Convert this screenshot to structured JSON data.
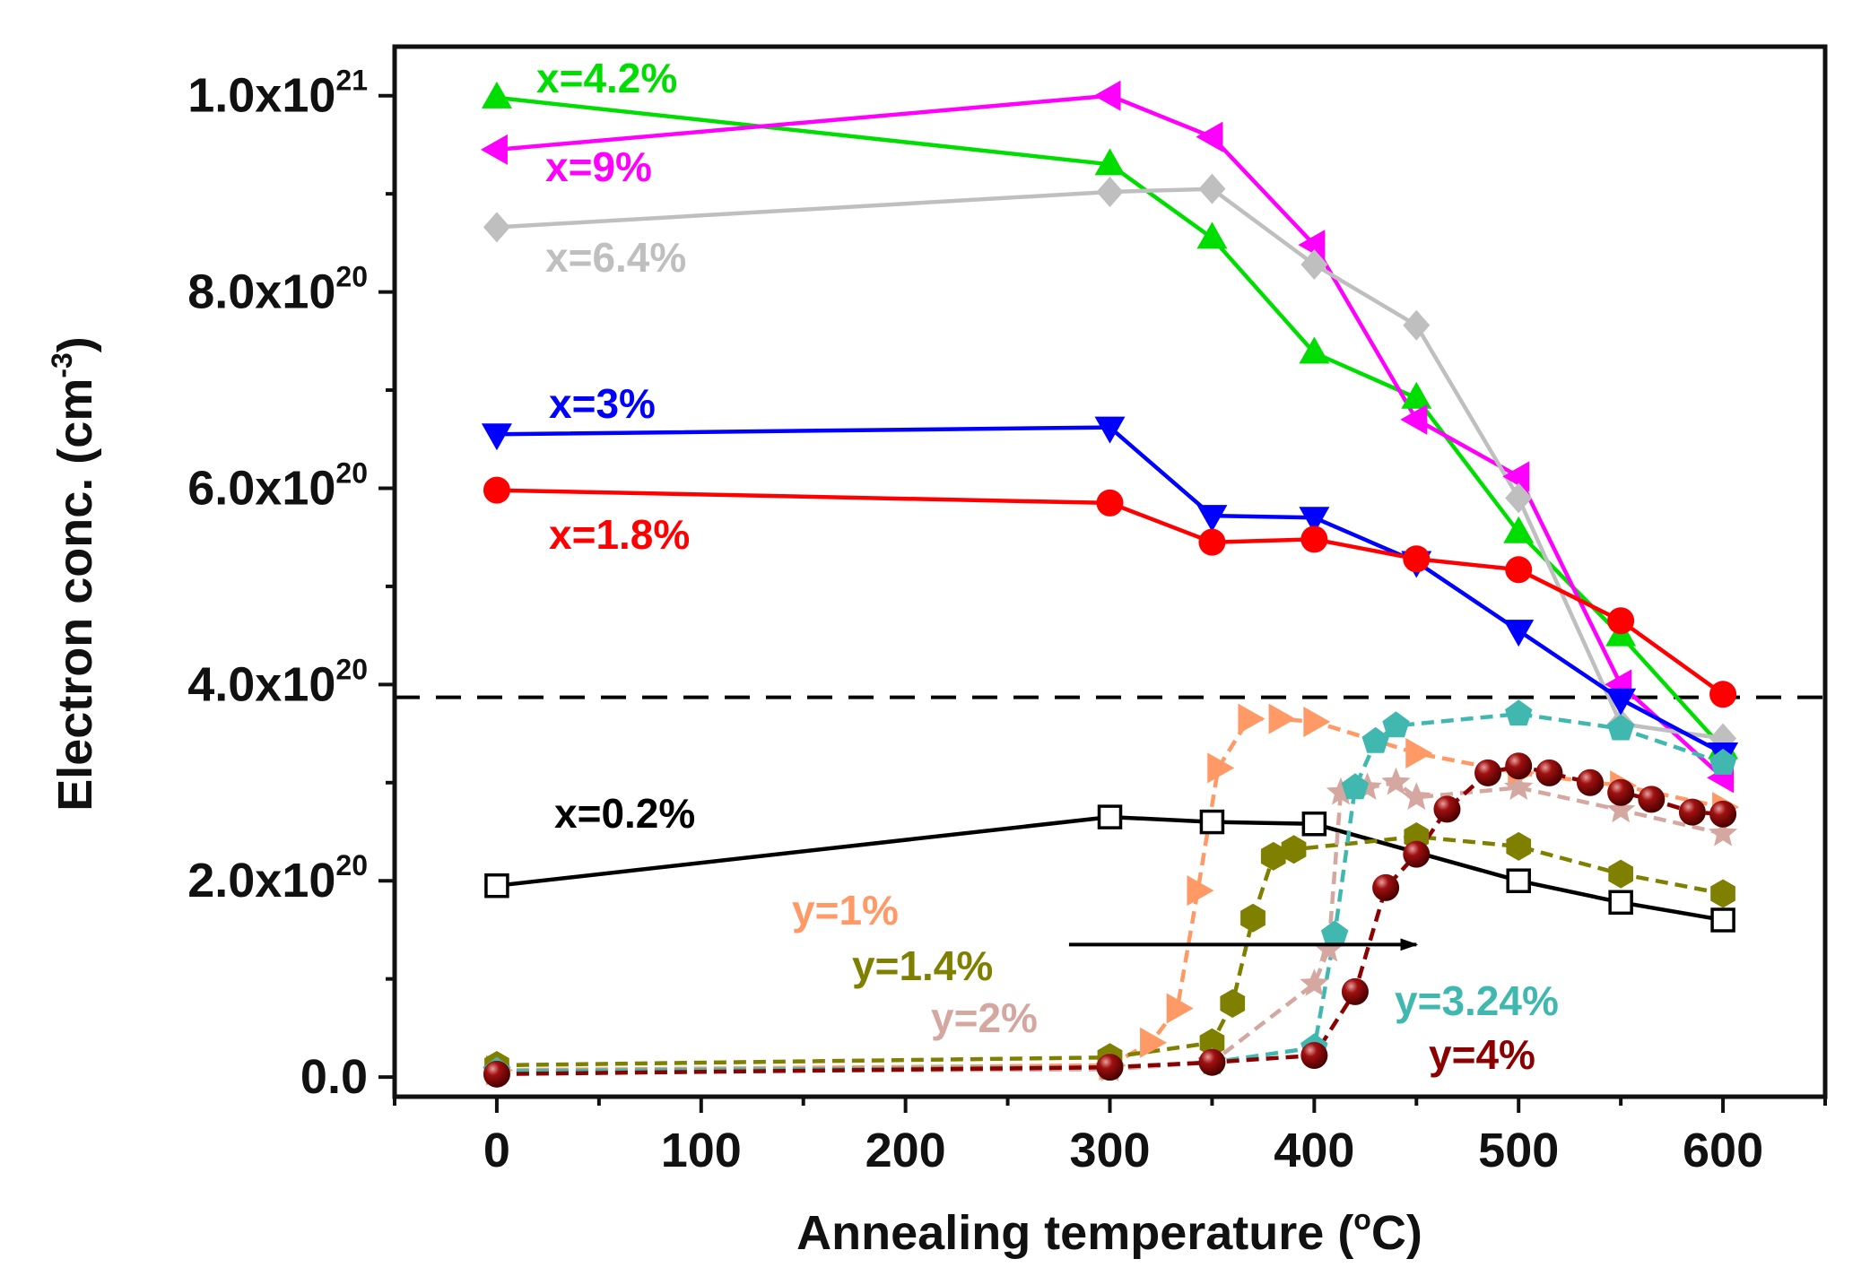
{
  "chart_data": {
    "type": "line",
    "xlabel": "Annealing temperature",
    "xlabel_unit_pre": "(",
    "xlabel_unit_sup": "o",
    "xlabel_unit_post": "C)",
    "ylabel": "Electron conc.",
    "ylabel_unit_pre": "(cm",
    "ylabel_unit_sup": "-3",
    "ylabel_unit_post": ")",
    "xlim": [
      -50,
      650
    ],
    "ylim": [
      -2e+19,
      1.05e+21
    ],
    "xticks": [
      {
        "value": 0,
        "label": "0"
      },
      {
        "value": 100,
        "label": "100"
      },
      {
        "value": 200,
        "label": "200"
      },
      {
        "value": 300,
        "label": "300"
      },
      {
        "value": 400,
        "label": "400"
      },
      {
        "value": 500,
        "label": "500"
      },
      {
        "value": 600,
        "label": "600"
      }
    ],
    "yticks": [
      {
        "value": 0,
        "base": "0.0",
        "exp": ""
      },
      {
        "value": 2e+20,
        "base": "2.0x10",
        "exp": "20"
      },
      {
        "value": 4e+20,
        "base": "4.0x10",
        "exp": "20"
      },
      {
        "value": 6e+20,
        "base": "6.0x10",
        "exp": "20"
      },
      {
        "value": 8e+20,
        "base": "8.0x10",
        "exp": "20"
      },
      {
        "value": 1e+21,
        "base": "1.0x10",
        "exp": "21"
      }
    ],
    "reference_line": {
      "y": 3.87e+20,
      "style": "dashed"
    },
    "annotation_arrow": {
      "from": [
        280,
        1.35e+20
      ],
      "to": [
        450,
        1.35e+20
      ]
    },
    "series": [
      {
        "name": "x=4.2%",
        "color": "#00dd00",
        "marker": "triangle-up",
        "dashed": false,
        "x": [
          0,
          300,
          350,
          400,
          450,
          500,
          550,
          600
        ],
        "y": [
          9.98e+20,
          9.3e+20,
          8.55e+20,
          7.38e+20,
          6.92e+20,
          5.55e+20,
          4.5e+20,
          3.35e+20
        ]
      },
      {
        "name": "x=9%",
        "color": "#ff00ff",
        "marker": "triangle-left",
        "dashed": false,
        "x": [
          0,
          300,
          350,
          400,
          450,
          500,
          550,
          600
        ],
        "y": [
          9.45e+20,
          1e+21,
          9.58e+20,
          8.48e+20,
          6.7e+20,
          6.12e+20,
          4e+20,
          3.05e+20
        ]
      },
      {
        "name": "x=6.4%",
        "color": "#bfbfbf",
        "marker": "diamond",
        "dashed": false,
        "x": [
          0,
          300,
          350,
          400,
          450,
          500,
          550,
          600
        ],
        "y": [
          8.66e+20,
          9.02e+20,
          9.05e+20,
          8.28e+20,
          7.66e+20,
          5.9e+20,
          3.6e+20,
          3.45e+20
        ]
      },
      {
        "name": "x=3%",
        "color": "#0000ff",
        "marker": "triangle-down",
        "dashed": false,
        "x": [
          0,
          300,
          350,
          400,
          450,
          500,
          550,
          600
        ],
        "y": [
          6.55e+20,
          6.62e+20,
          5.72e+20,
          5.7e+20,
          5.25e+20,
          4.55e+20,
          3.85e+20,
          3.3e+20
        ]
      },
      {
        "name": "x=1.8%",
        "color": "#ff0000",
        "marker": "circle",
        "dashed": false,
        "x": [
          0,
          300,
          350,
          400,
          450,
          500,
          550,
          600
        ],
        "y": [
          5.98e+20,
          5.85e+20,
          5.45e+20,
          5.48e+20,
          5.28e+20,
          5.17e+20,
          4.65e+20,
          3.9e+20
        ]
      },
      {
        "name": "x=0.2%",
        "color": "#000000",
        "marker": "square-open",
        "dashed": false,
        "x": [
          0,
          300,
          350,
          400,
          500,
          550,
          600
        ],
        "y": [
          1.95e+20,
          2.65e+20,
          2.6e+20,
          2.58e+20,
          2e+20,
          1.78e+20,
          1.6e+20
        ]
      },
      {
        "name": "y=1%",
        "color": "#ff9966",
        "marker": "triangle-right",
        "dashed": true,
        "x": [
          0,
          300,
          320,
          333,
          343,
          353,
          368,
          383,
          400,
          450,
          500,
          550,
          600
        ],
        "y": [
          7e+18,
          1.2e+19,
          3.5e+19,
          7e+19,
          1.9e+20,
          3.15e+20,
          3.65e+20,
          3.65e+20,
          3.62e+20,
          3.3e+20,
          3.1e+20,
          2.97e+20,
          2.75e+20
        ]
      },
      {
        "name": "y=1.4%",
        "color": "#808000",
        "marker": "hexagon",
        "dashed": true,
        "x": [
          0,
          300,
          350,
          360,
          370,
          380,
          390,
          450,
          500,
          550,
          600
        ],
        "y": [
          1.2e+19,
          2e+19,
          3.5e+19,
          7.5e+19,
          1.62e+20,
          2.25e+20,
          2.32e+20,
          2.45e+20,
          2.35e+20,
          2.07e+20,
          1.87e+20
        ]
      },
      {
        "name": "y=2%",
        "color": "#d4a8a0",
        "marker": "star",
        "dashed": true,
        "x": [
          0,
          300,
          350,
          400,
          407,
          413,
          426,
          440,
          450,
          500,
          550,
          600
        ],
        "y": [
          5e+18,
          8e+18,
          1.5e+19,
          9.5e+19,
          1.3e+20,
          2.9e+20,
          2.95e+20,
          3e+20,
          2.85e+20,
          2.95e+20,
          2.72e+20,
          2.48e+20
        ]
      },
      {
        "name": "y=3.24%",
        "color": "#40b8b0",
        "marker": "pentagon",
        "dashed": true,
        "x": [
          0,
          300,
          350,
          400,
          410,
          420,
          430,
          440,
          500,
          550,
          600
        ],
        "y": [
          6e+18,
          1e+19,
          1.5e+19,
          3e+19,
          1.45e+20,
          2.95e+20,
          3.42e+20,
          3.58e+20,
          3.7e+20,
          3.55e+20,
          3.2e+20
        ]
      },
      {
        "name": "y=4%",
        "color": "#8b0000",
        "marker": "sphere",
        "dashed": true,
        "x": [
          0,
          300,
          350,
          400,
          420,
          435,
          450,
          465,
          485,
          500,
          515,
          535,
          550,
          565,
          585,
          600
        ],
        "y": [
          3e+18,
          1e+19,
          1.5e+19,
          2.2e+19,
          8.7e+19,
          1.93e+20,
          2.27e+20,
          2.73e+20,
          3.1e+20,
          3.17e+20,
          3.1e+20,
          3e+20,
          2.9e+20,
          2.83e+20,
          2.7e+20,
          2.68e+20
        ]
      }
    ]
  }
}
